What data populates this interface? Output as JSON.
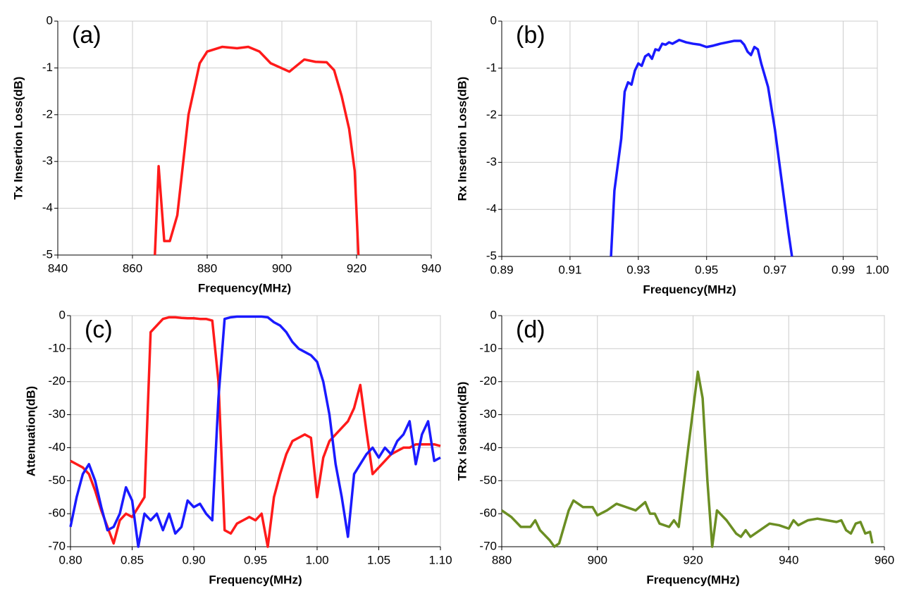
{
  "chart_data": [
    {
      "type": "line",
      "annotation": "(a)",
      "xlabel": "Frequency(MHz)",
      "ylabel": "Tx Insertion Loss(dB)",
      "xlim": [
        840,
        940
      ],
      "ylim": [
        -5,
        0
      ],
      "xticks": [
        840,
        860,
        880,
        900,
        920,
        940
      ],
      "yticks": [
        0,
        -1,
        -2,
        -3,
        -4,
        -5
      ],
      "grid": true,
      "x": [
        866,
        867,
        868.5,
        870,
        872,
        875,
        878,
        880,
        884,
        888,
        891,
        894,
        897,
        902,
        904,
        906,
        909,
        912,
        914,
        916,
        918,
        919.5,
        920.5
      ],
      "series": [
        {
          "color": "#ff1a1a",
          "values": [
            -5,
            -3.1,
            -4.7,
            -4.7,
            -4.15,
            -2.0,
            -0.9,
            -0.65,
            -0.55,
            -0.58,
            -0.55,
            -0.65,
            -0.9,
            -1.08,
            -0.95,
            -0.82,
            -0.87,
            -0.88,
            -1.05,
            -1.6,
            -2.3,
            -3.2,
            -5
          ]
        }
      ]
    },
    {
      "type": "line",
      "annotation": "(b)",
      "xlabel": "Frequency(MHz)",
      "ylabel": "Rx Insertion Loss(dB)",
      "xlim": [
        0.89,
        1.0
      ],
      "ylim": [
        -5,
        0
      ],
      "xticks": [
        0.89,
        0.91,
        0.93,
        0.95,
        0.97,
        0.99,
        {
          "value": 1.0,
          "label": "1.00"
        }
      ],
      "yticks": [
        0,
        -1,
        -2,
        -3,
        -4,
        -5
      ],
      "grid": true,
      "x": [
        0.922,
        0.923,
        0.925,
        0.926,
        0.927,
        0.928,
        0.929,
        0.93,
        0.931,
        0.932,
        0.933,
        0.934,
        0.935,
        0.936,
        0.937,
        0.938,
        0.939,
        0.94,
        0.942,
        0.944,
        0.946,
        0.948,
        0.95,
        0.952,
        0.954,
        0.956,
        0.958,
        0.96,
        0.961,
        0.962,
        0.963,
        0.964,
        0.965,
        0.966,
        0.968,
        0.97,
        0.972,
        0.974,
        0.975
      ],
      "series": [
        {
          "color": "#1a1aff",
          "values": [
            -5,
            -3.6,
            -2.5,
            -1.5,
            -1.3,
            -1.35,
            -1.05,
            -0.9,
            -0.95,
            -0.75,
            -0.7,
            -0.8,
            -0.6,
            -0.62,
            -0.48,
            -0.5,
            -0.45,
            -0.48,
            -0.4,
            -0.45,
            -0.48,
            -0.5,
            -0.55,
            -0.52,
            -0.48,
            -0.45,
            -0.42,
            -0.42,
            -0.5,
            -0.65,
            -0.72,
            -0.55,
            -0.6,
            -0.9,
            -1.4,
            -2.3,
            -3.4,
            -4.5,
            -5
          ]
        }
      ]
    },
    {
      "type": "line",
      "annotation": "(c)",
      "xlabel": "Frequency(MHz)",
      "ylabel": "Attenuation(dB)",
      "xlim": [
        0.8,
        1.1
      ],
      "ylim": [
        -70,
        0
      ],
      "xticks": [
        {
          "value": 0.8,
          "label": "0.80"
        },
        0.85,
        {
          "value": 0.9,
          "label": "0.90"
        },
        0.95,
        {
          "value": 1.0,
          "label": "1.00"
        },
        1.05,
        {
          "value": 1.1,
          "label": "1.10"
        }
      ],
      "yticks": [
        0,
        -10,
        -20,
        -30,
        -40,
        -50,
        -60,
        -70
      ],
      "grid": true,
      "x": [
        0.8,
        0.805,
        0.81,
        0.815,
        0.82,
        0.825,
        0.83,
        0.835,
        0.84,
        0.845,
        0.85,
        0.855,
        0.86,
        0.865,
        0.87,
        0.875,
        0.88,
        0.885,
        0.89,
        0.895,
        0.9,
        0.905,
        0.91,
        0.915,
        0.92,
        0.925,
        0.93,
        0.935,
        0.94,
        0.945,
        0.95,
        0.955,
        0.96,
        0.965,
        0.97,
        0.975,
        0.98,
        0.985,
        0.99,
        0.995,
        1.0,
        1.005,
        1.01,
        1.015,
        1.02,
        1.025,
        1.03,
        1.035,
        1.04,
        1.045,
        1.05,
        1.055,
        1.06,
        1.065,
        1.07,
        1.075,
        1.08,
        1.085,
        1.09,
        1.095,
        1.1
      ],
      "series": [
        {
          "color": "#ff1a1a",
          "values": [
            -44,
            -45,
            -46,
            -48,
            -53,
            -59,
            -64,
            -69,
            -62,
            -60,
            -61,
            -58,
            -55,
            -5,
            -3,
            -1,
            -0.5,
            -0.5,
            -0.7,
            -0.8,
            -0.8,
            -1,
            -1,
            -1.5,
            -20,
            -65,
            -66,
            -63,
            -62,
            -61,
            -62,
            -60,
            -70,
            -55,
            -48,
            -42,
            -38,
            -37,
            -36,
            -37,
            -55,
            -43,
            -38,
            -36,
            -34,
            -32,
            -28,
            -21,
            -35,
            -48,
            -46,
            -44,
            -42,
            -41,
            -40,
            -40,
            -39,
            -39,
            -39,
            -39,
            -39.5
          ]
        },
        {
          "color": "#1a1aff",
          "values": [
            -64,
            -55,
            -48,
            -45,
            -50,
            -58,
            -65,
            -64,
            -60,
            -52,
            -56,
            -70,
            -60,
            -62,
            -60,
            -65,
            -60,
            -66,
            -64,
            -56,
            -58,
            -57,
            -60,
            -62,
            -25,
            -1,
            -0.5,
            -0.3,
            -0.3,
            -0.3,
            -0.3,
            -0.3,
            -0.5,
            -2,
            -3,
            -5,
            -8,
            -10,
            -11,
            -12,
            -14,
            -20,
            -30,
            -45,
            -55,
            -67,
            -48,
            -45,
            -42,
            -40,
            -43,
            -40,
            -42,
            -38,
            -36,
            -32,
            -45,
            -36,
            -32,
            -44,
            -43
          ]
        }
      ]
    },
    {
      "type": "line",
      "annotation": "(d)",
      "xlabel": "Frequency(MHz)",
      "ylabel": "TRx Isolation(dB)",
      "xlim": [
        880,
        960
      ],
      "ylim": [
        -70,
        0
      ],
      "xticks": [
        880,
        900,
        920,
        940,
        960
      ],
      "yticks": [
        0,
        -10,
        -20,
        -30,
        -40,
        -50,
        -60,
        -70
      ],
      "grid": true,
      "x": [
        880,
        882,
        884,
        886,
        887,
        888,
        890,
        891,
        892,
        894,
        895,
        897,
        899,
        900,
        902,
        904,
        906,
        908,
        910,
        911,
        912,
        913,
        915,
        916,
        917,
        919,
        921,
        922,
        923,
        924,
        925,
        927,
        929,
        930,
        931,
        932,
        934,
        936,
        938,
        940,
        941,
        942,
        944,
        946,
        948,
        950,
        951,
        952,
        953,
        954,
        955,
        956,
        957,
        957.5
      ],
      "series": [
        {
          "color": "#6b8e23",
          "values": [
            -59,
            -61,
            -64,
            -64,
            -62,
            -65,
            -68,
            -70,
            -69,
            -59,
            -56,
            -58,
            -58,
            -60.5,
            -59,
            -57,
            -58,
            -59,
            -56.5,
            -60,
            -60,
            -63,
            -64,
            -62,
            -64,
            -40,
            -17,
            -25,
            -50,
            -70,
            -59,
            -62,
            -66,
            -67,
            -65,
            -67,
            -65,
            -63,
            -63.5,
            -64.5,
            -62,
            -63.5,
            -62,
            -61.5,
            -62,
            -62.5,
            -62,
            -65,
            -66,
            -63,
            -62.5,
            -66,
            -65.5,
            -69
          ]
        }
      ]
    }
  ]
}
